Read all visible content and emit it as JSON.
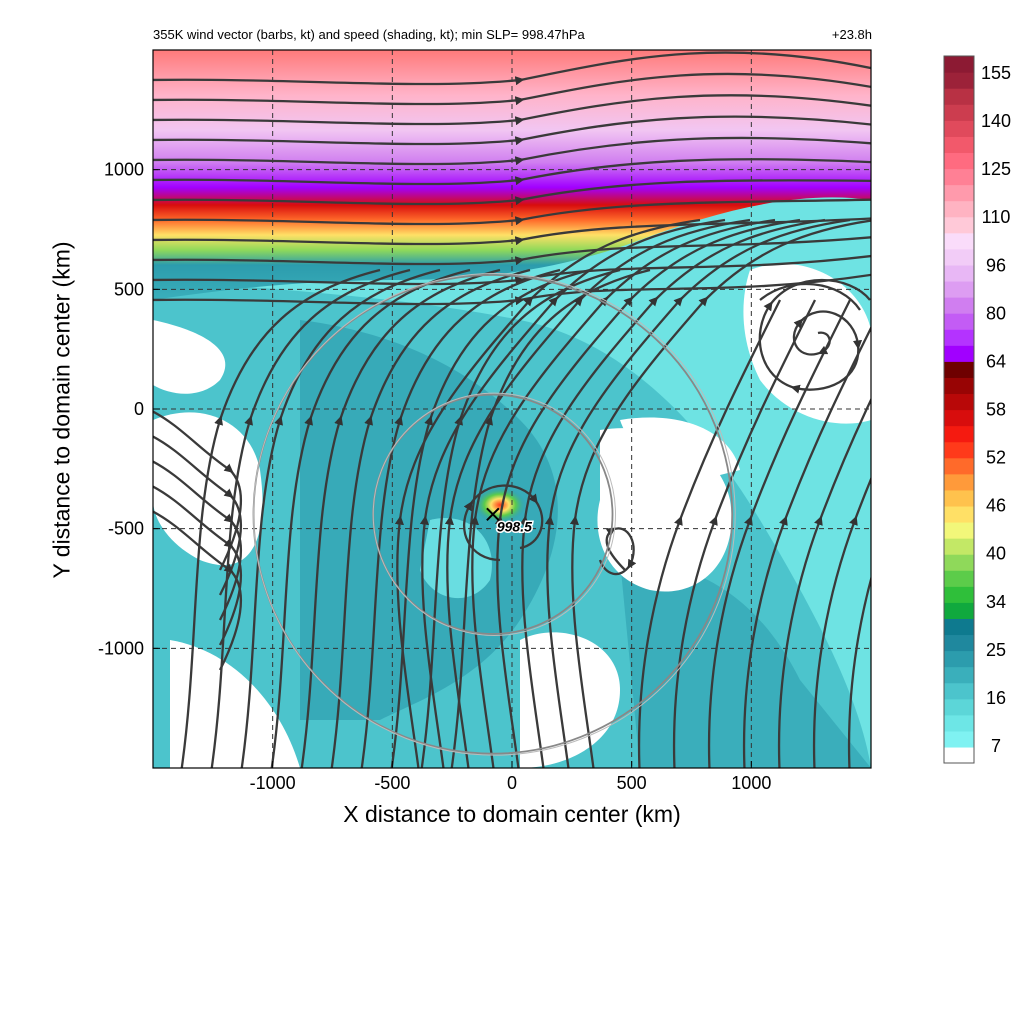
{
  "chart_data": {
    "type": "heatmap",
    "title": "355K wind vector (barbs, kt) and speed (shading, kt); min SLP= 998.47hPa",
    "lead_time": "+23.8h",
    "xlabel": "X distance to domain center (km)",
    "ylabel": "Y distance to domain center (km)",
    "xlim": [
      -1500,
      1500
    ],
    "ylim": [
      -1500,
      1500
    ],
    "x_ticks": [
      -1000,
      -500,
      0,
      500,
      1000
    ],
    "y_ticks": [
      -1000,
      -500,
      0,
      500,
      1000
    ],
    "x_tick_labels": [
      "-1000",
      "-500",
      "0",
      "500",
      "1000"
    ],
    "y_tick_labels": [
      "-1000",
      "-500",
      "0",
      "500",
      "1000"
    ],
    "grid": "dashed",
    "colorbar": {
      "min": 7,
      "max": 160,
      "tick_labels": [
        "7",
        "16",
        "25",
        "34",
        "40",
        "46",
        "52",
        "58",
        "64",
        "80",
        "96",
        "110",
        "125",
        "140",
        "155"
      ],
      "tick_values": [
        7,
        16,
        25,
        34,
        40,
        46,
        52,
        58,
        64,
        80,
        96,
        110,
        125,
        140,
        155
      ],
      "colors": [
        "#ffffff",
        "#7ff2f2",
        "#6de6e6",
        "#5cd6d8",
        "#4cc4cc",
        "#3aafbb",
        "#2c9cad",
        "#1f889e",
        "#0e7a8f",
        "#10a93e",
        "#2fbf3a",
        "#5ccc4a",
        "#8fd95a",
        "#c3e866",
        "#f2f77a",
        "#ffe066",
        "#ffc24d",
        "#ff9a3a",
        "#ff6a2a",
        "#ff3a1a",
        "#f51a10",
        "#d80d0d",
        "#b80808",
        "#980404",
        "#6e0000",
        "#a100ff",
        "#b433ff",
        "#c35cf5",
        "#d07ef0",
        "#dd9df2",
        "#e8b7f5",
        "#f2ccf7",
        "#fadcfa",
        "#ffc9d8",
        "#ffb3c2",
        "#ff9aac",
        "#ff8095",
        "#ff6b80",
        "#f2596b",
        "#e04a5c",
        "#cc3d4f",
        "#b83144",
        "#9c2239",
        "#8c1a33"
      ]
    },
    "storm_center": {
      "x": -80,
      "y": -440,
      "min_slp_label": "998.5"
    },
    "range_rings_km": [
      500,
      1000
    ],
    "map_bounds": {
      "x_min": -1500,
      "x_max": 1500,
      "y_min": -1500,
      "y_max": 1500
    }
  }
}
